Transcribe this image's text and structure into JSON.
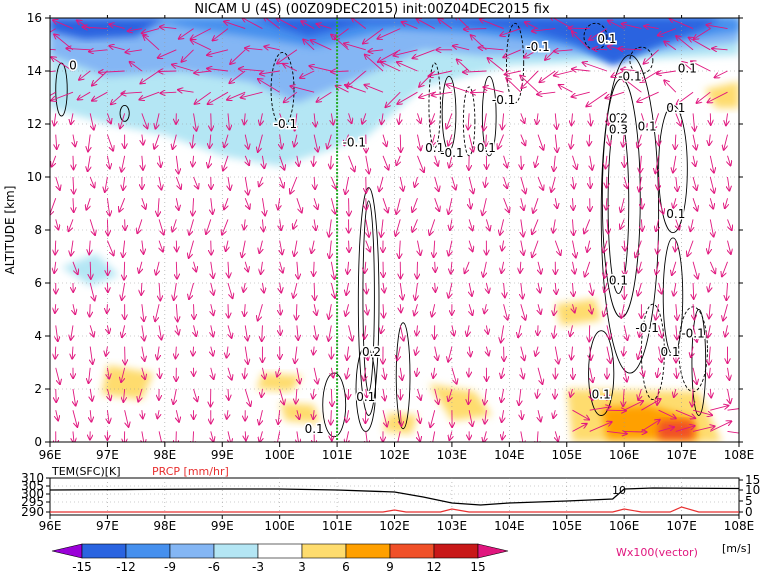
{
  "chart_data": {
    "type": "heatmap",
    "title": "NICAM U (4S) (00Z09DEC2015) init:00Z04DEC2015 fix",
    "ylabel": "ALTITUDE [km]",
    "x_ticks": [
      "96E",
      "97E",
      "98E",
      "99E",
      "100E",
      "101E",
      "102E",
      "103E",
      "104E",
      "105E",
      "106E",
      "107E",
      "108E"
    ],
    "y_ticks": [
      "0",
      "2",
      "4",
      "6",
      "8",
      "10",
      "12",
      "14",
      "16"
    ],
    "xlim": [
      96,
      108
    ],
    "ylim": [
      0,
      16
    ],
    "marker_line_lon": 101.0,
    "contour_labels": [
      {
        "lon": 96.4,
        "alt": 14.2,
        "text": "0"
      },
      {
        "lon": 100.1,
        "alt": 12.0,
        "text": "-0.1"
      },
      {
        "lon": 100.6,
        "alt": 0.5,
        "text": "0.1"
      },
      {
        "lon": 101.6,
        "alt": 3.4,
        "text": "0.2"
      },
      {
        "lon": 101.5,
        "alt": 1.7,
        "text": "0.1"
      },
      {
        "lon": 101.3,
        "alt": 11.3,
        "text": "-0.1"
      },
      {
        "lon": 102.7,
        "alt": 11.1,
        "text": "0.1"
      },
      {
        "lon": 103.0,
        "alt": 10.9,
        "text": "-0.1"
      },
      {
        "lon": 103.6,
        "alt": 11.1,
        "text": "0.1"
      },
      {
        "lon": 103.9,
        "alt": 12.9,
        "text": "-0.1"
      },
      {
        "lon": 104.5,
        "alt": 14.9,
        "text": "-0.1"
      },
      {
        "lon": 105.7,
        "alt": 15.2,
        "text": "0.1"
      },
      {
        "lon": 106.1,
        "alt": 13.8,
        "text": "-0.1"
      },
      {
        "lon": 105.9,
        "alt": 12.2,
        "text": "0.2"
      },
      {
        "lon": 105.9,
        "alt": 11.8,
        "text": "0.3"
      },
      {
        "lon": 106.4,
        "alt": 11.9,
        "text": "0.1"
      },
      {
        "lon": 107.1,
        "alt": 14.1,
        "text": "0.1"
      },
      {
        "lon": 106.9,
        "alt": 12.6,
        "text": "0.1"
      },
      {
        "lon": 106.9,
        "alt": 8.6,
        "text": "0.1"
      },
      {
        "lon": 105.9,
        "alt": 6.1,
        "text": "0.1"
      },
      {
        "lon": 106.4,
        "alt": 4.3,
        "text": "-0.1"
      },
      {
        "lon": 107.2,
        "alt": 4.1,
        "text": "-0.1"
      },
      {
        "lon": 106.8,
        "alt": 3.4,
        "text": "0.1"
      },
      {
        "lon": 105.6,
        "alt": 1.8,
        "text": "0.1"
      }
    ],
    "colorbar": {
      "levels": [
        "-15",
        "-12",
        "-9",
        "-6",
        "-3",
        "3",
        "6",
        "9",
        "12",
        "15"
      ],
      "unit": "[m/s]",
      "vector_label": "Wx100(vector)",
      "colors": [
        "#9a00d8",
        "#2a64e0",
        "#4690ee",
        "#84b6f4",
        "#b4e6f4",
        "#ffffff",
        "#fedc6e",
        "#ffa000",
        "#f05028",
        "#c81818",
        "#e0167e"
      ]
    },
    "subpanel": {
      "left_label": "TEM(SFC)[K]",
      "right_label": "PRCP [mm/hr]",
      "left_ticks": [
        "310",
        "305",
        "300",
        "295",
        "290"
      ],
      "right_ticks": [
        "15",
        "10",
        "5",
        "0"
      ],
      "annotation": "10",
      "x_ticks": [
        "96E",
        "97E",
        "98E",
        "99E",
        "100E",
        "101E",
        "102E",
        "103E",
        "104E",
        "105E",
        "106E",
        "107E",
        "108E"
      ]
    }
  },
  "colors": {
    "vector": "#e0167e",
    "marker_line": "#22aa22",
    "temperature": "#000000",
    "precip": "#e83030"
  }
}
